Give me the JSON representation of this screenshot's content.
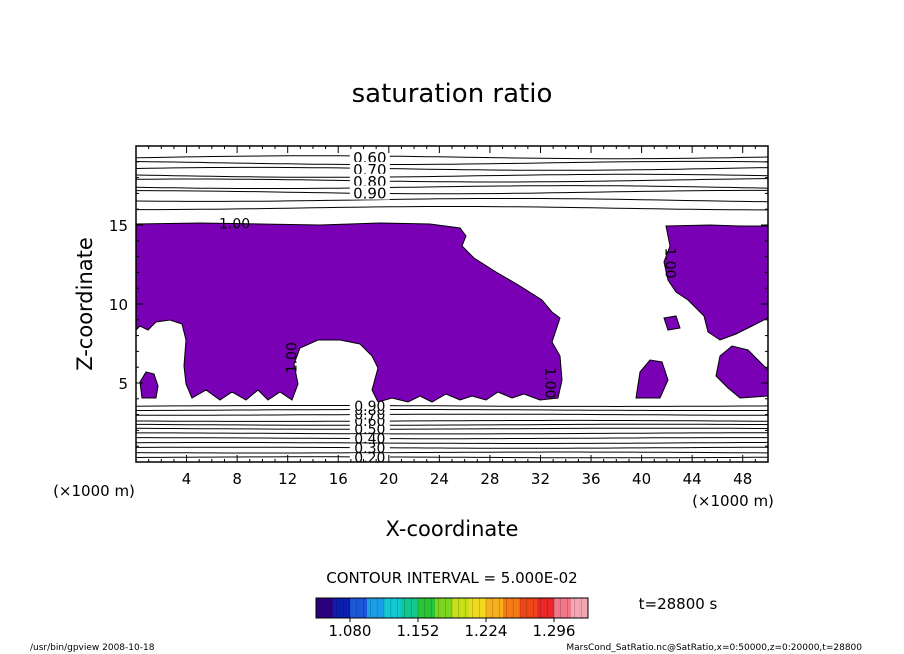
{
  "chart_data": {
    "type": "contour",
    "title": "saturation ratio",
    "xlabel": "X-coordinate",
    "ylabel": "Z-coordinate",
    "x_unit_left": "(×1000 m)",
    "x_unit_right": "(×1000 m)",
    "xlim": [
      0,
      50
    ],
    "ylim": [
      0,
      20
    ],
    "x_ticks": [
      4,
      8,
      12,
      16,
      20,
      24,
      28,
      32,
      36,
      40,
      44,
      48
    ],
    "y_ticks": [
      5,
      10,
      15
    ],
    "upper_contours": [
      {
        "z": 19.3,
        "label": "0.60"
      },
      {
        "z": 18.55,
        "label": "0.70"
      },
      {
        "z": 17.8,
        "label": "0.80"
      },
      {
        "z": 17.05,
        "label": "0.90"
      },
      {
        "z": 18.9,
        "label": ""
      },
      {
        "z": 18.1,
        "label": ""
      },
      {
        "z": 17.4,
        "label": ""
      },
      {
        "z": 16.6,
        "label": ""
      },
      {
        "z": 16.1,
        "label": ""
      }
    ],
    "lower_contours": [
      {
        "z": 0.3,
        "label": "0.20"
      },
      {
        "z": 0.9,
        "label": "0.30"
      },
      {
        "z": 1.5,
        "label": "0.40"
      },
      {
        "z": 2.1,
        "label": "0.50"
      },
      {
        "z": 2.6,
        "label": "0.60"
      },
      {
        "z": 3.0,
        "label": "0.70"
      },
      {
        "z": 3.3,
        "label": "0.80"
      },
      {
        "z": 3.55,
        "label": "0.90"
      },
      {
        "z": 1.2,
        "label": ""
      },
      {
        "z": 1.8,
        "label": ""
      },
      {
        "z": 2.35,
        "label": ""
      },
      {
        "z": 0.6,
        "label": ""
      }
    ],
    "inline_labels": [
      {
        "x": 7.8,
        "z": 15.1,
        "text": "1.00",
        "rotate": 0
      },
      {
        "x": 42.3,
        "z": 12.6,
        "text": "1.00",
        "rotate": 90
      },
      {
        "x": 12.3,
        "z": 6.6,
        "text": "1.00",
        "rotate": -90
      },
      {
        "x": 32.8,
        "z": 5.0,
        "text": "1.00",
        "rotate": 90
      }
    ],
    "fill_color": "#7a00b5",
    "contour_interval_text": "CONTOUR INTERVAL = 5.000E-02",
    "time_text": "t=28800 s",
    "colorbar": {
      "min": 1.044,
      "max": 1.332,
      "tick_labels": [
        "1.080",
        "1.152",
        "1.224",
        "1.296"
      ],
      "tick_values": [
        1.08,
        1.152,
        1.224,
        1.296
      ],
      "colors": [
        "#2a0080",
        "#0a1fb0",
        "#1a58d8",
        "#1d9fe8",
        "#12c8d2",
        "#10c890",
        "#2ac43a",
        "#7ad61e",
        "#c6e01a",
        "#f0da1e",
        "#f6b01c",
        "#f57a16",
        "#ef4818",
        "#ea2828",
        "#f07888",
        "#f4a6b4"
      ]
    }
  },
  "footer": {
    "left": "/usr/bin/gpview  2008-10-18",
    "right": "MarsCond_SatRatio.nc@SatRatio,x=0:50000,z=0:20000,t=28800"
  }
}
